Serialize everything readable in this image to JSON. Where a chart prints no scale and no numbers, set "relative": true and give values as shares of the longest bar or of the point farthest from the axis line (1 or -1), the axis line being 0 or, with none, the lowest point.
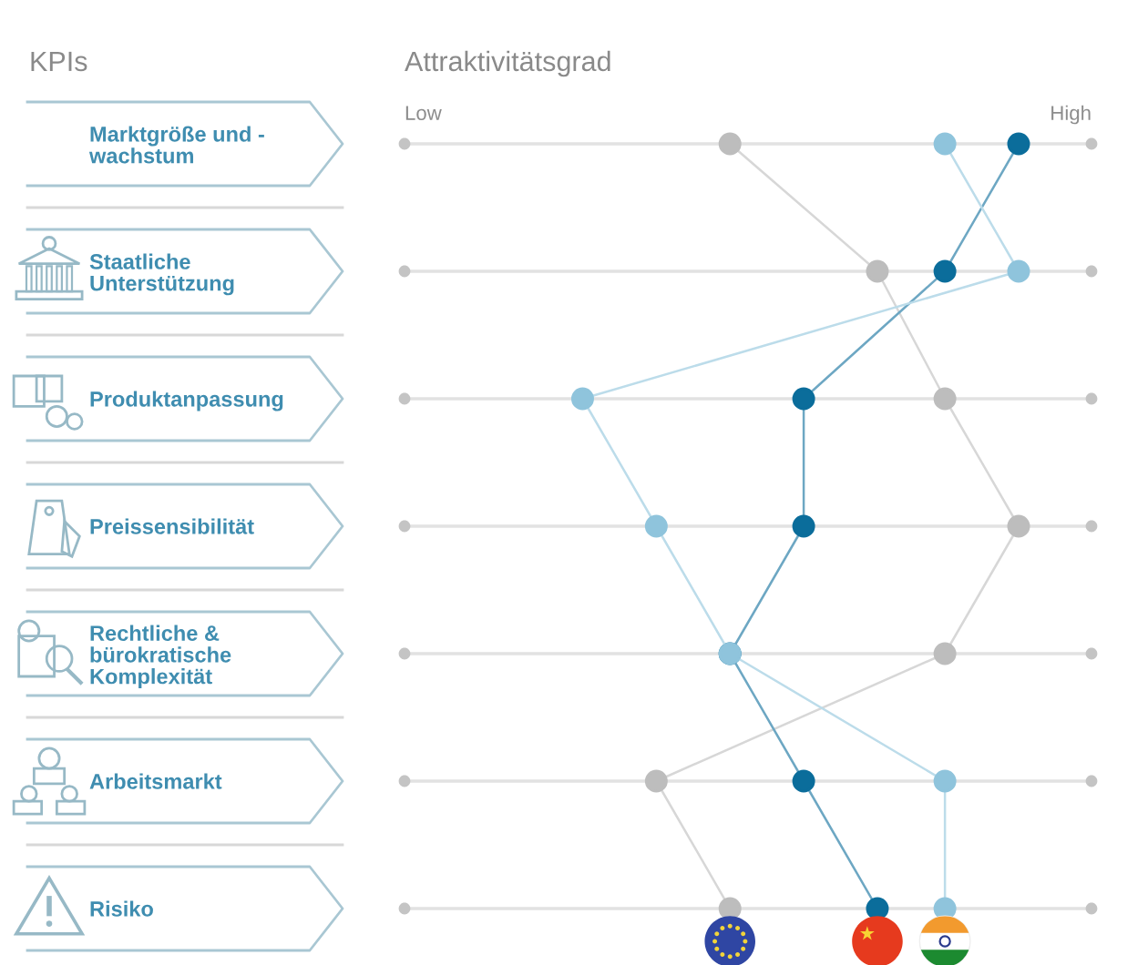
{
  "chart_data": {
    "type": "line",
    "orientation": "horizontal",
    "relative": true,
    "xlabel": "Attraktivitätsgrad",
    "ylabel": "KPIs",
    "annotations": [
      "Low",
      "High"
    ],
    "categories": [
      "Marktgröße und -\nwachstum",
      "Staatliche\nUnterstützung",
      "Produktanpassung",
      "Preissensibilität",
      "Rechtliche &\nbürokratische\nKomplexität",
      "Arbeitsmarkt",
      "Risiko"
    ],
    "series": [
      {
        "color": "#bdbdbd",
        "values": [
          0.53,
          0.77,
          0.88,
          1,
          0.88,
          0.41,
          0.53
        ]
      },
      {
        "color": "#0b6d9b",
        "values": [
          1,
          0.88,
          0.65,
          0.65,
          0.53,
          0.65,
          0.77
        ]
      },
      {
        "color": "#8fc4dc",
        "values": [
          0.88,
          1,
          0.29,
          0.41,
          0.53,
          0.88,
          0.88
        ]
      }
    ],
    "marker": "circle",
    "line_style": "solid",
    "grid": "y"
  }
}
